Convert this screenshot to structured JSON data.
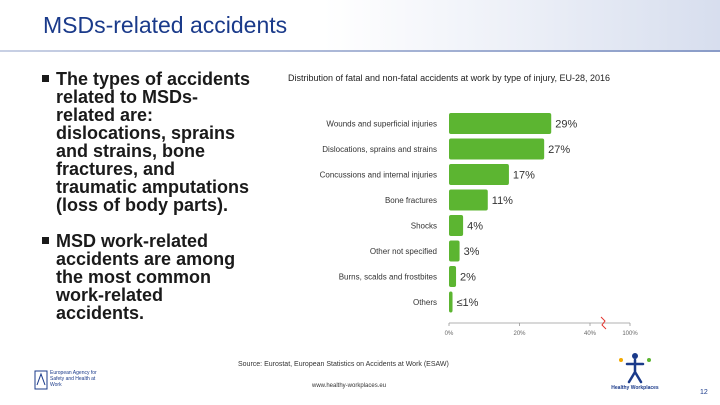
{
  "slide": {
    "title": "MSDs-related accidents",
    "bullets": [
      "The types of accidents related to MSDs-related are: dislocations, sprains and strains, bone fractures, and traumatic amputations (loss of body parts).",
      "MSD work-related accidents are among the most common work-related accidents."
    ],
    "page_number": "12"
  },
  "chart_data": {
    "type": "bar",
    "orientation": "horizontal",
    "title": "Distribution of fatal and non-fatal accidents at work by type of injury, EU-28, 2016",
    "categories": [
      "Wounds and superficial injuries",
      "Dislocations, sprains and strains",
      "Concussions and internal injuries",
      "Bone fractures",
      "Shocks",
      "Other not specified",
      "Burns, scalds and frostbites",
      "Others"
    ],
    "values": [
      29,
      27,
      17,
      11,
      4,
      3,
      2,
      1
    ],
    "data_labels": [
      "29%",
      "27%",
      "17%",
      "11%",
      "4%",
      "3%",
      "2%",
      "≤1%"
    ],
    "x_ticks": [
      "0%",
      "20%",
      "40%",
      "100%"
    ],
    "xlim": [
      0,
      100
    ],
    "axis_break": true,
    "bar_color": "#5cb531",
    "source": "Source: Eurostat, European Statistics on Accidents at Work (ESAW)"
  },
  "footer": {
    "url": "www.healthy-workplaces.eu",
    "agency_logo_text": "European Agency for Safety and Health at Work",
    "campaign_logo_text": "Healthy Workplaces"
  },
  "colors": {
    "title": "#1a3a8a",
    "bar": "#5cb531",
    "text": "#1a1a1a"
  }
}
